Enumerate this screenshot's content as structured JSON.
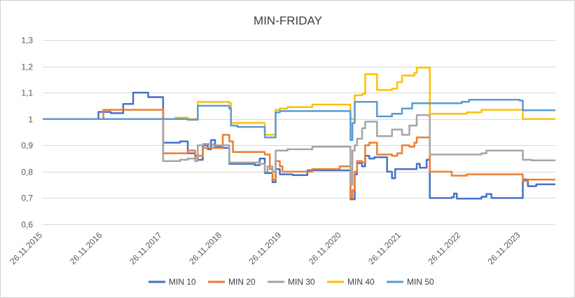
{
  "chart_data": {
    "type": "line",
    "title": "MIN-FRIDAY",
    "xlabel": "",
    "ylabel": "",
    "x_start": "2015-11-26",
    "x_end": "2024-06-26",
    "x_tick_labels": [
      "26.11.2015",
      "26.11.2016",
      "26.11.2017",
      "26.11.2018",
      "26.11.2019",
      "26.11.2020",
      "26.11.2021",
      "26.11.2022",
      "26.11.2023"
    ],
    "y_tick_labels": [
      "0,6",
      "0,7",
      "0,8",
      "0,9",
      "1",
      "1,1",
      "1,2",
      "1,3"
    ],
    "ylim": [
      0.6,
      1.3
    ],
    "y_step": 0.1,
    "grid": "horizontal",
    "legend_position": "bottom",
    "series": [
      {
        "name": "MIN 10",
        "color": "#4472C4",
        "points": [
          [
            "2015-11-26",
            1.0
          ],
          [
            "2016-10-01",
            1.0
          ],
          [
            "2016-11-01",
            1.027
          ],
          [
            "2017-01-15",
            1.022
          ],
          [
            "2017-04-01",
            1.057
          ],
          [
            "2017-06-01",
            1.1
          ],
          [
            "2017-09-01",
            1.083
          ],
          [
            "2017-12-01",
            0.91
          ],
          [
            "2018-03-15",
            0.915
          ],
          [
            "2018-05-01",
            0.87
          ],
          [
            "2018-06-15",
            0.86
          ],
          [
            "2018-07-01",
            0.845
          ],
          [
            "2018-08-01",
            0.9
          ],
          [
            "2018-09-01",
            0.885
          ],
          [
            "2018-09-20",
            0.92
          ],
          [
            "2018-10-15",
            0.895
          ],
          [
            "2018-12-01",
            0.89
          ],
          [
            "2019-01-10",
            0.83
          ],
          [
            "2019-06-15",
            0.825
          ],
          [
            "2019-07-15",
            0.85
          ],
          [
            "2019-08-15",
            0.795
          ],
          [
            "2019-10-01",
            0.76
          ],
          [
            "2019-10-20",
            0.81
          ],
          [
            "2019-11-15",
            0.79
          ],
          [
            "2020-02-01",
            0.787
          ],
          [
            "2020-05-01",
            0.805
          ],
          [
            "2020-11-15",
            0.805
          ],
          [
            "2021-01-20",
            0.695
          ],
          [
            "2021-02-15",
            0.79
          ],
          [
            "2021-03-01",
            0.832
          ],
          [
            "2021-04-01",
            0.82
          ],
          [
            "2021-04-20",
            0.86
          ],
          [
            "2021-05-15",
            0.85
          ],
          [
            "2021-06-15",
            0.855
          ],
          [
            "2021-09-01",
            0.8
          ],
          [
            "2021-10-01",
            0.775
          ],
          [
            "2021-10-20",
            0.81
          ],
          [
            "2022-02-01",
            0.81
          ],
          [
            "2022-03-01",
            0.83
          ],
          [
            "2022-03-20",
            0.815
          ],
          [
            "2022-05-01",
            0.845
          ],
          [
            "2022-05-20",
            0.7
          ],
          [
            "2022-10-01",
            0.703
          ],
          [
            "2022-10-15",
            0.717
          ],
          [
            "2022-11-01",
            0.698
          ],
          [
            "2023-04-01",
            0.705
          ],
          [
            "2023-05-01",
            0.715
          ],
          [
            "2023-06-01",
            0.7
          ],
          [
            "2023-11-20",
            0.7
          ],
          [
            "2023-12-10",
            0.77
          ],
          [
            "2024-01-10",
            0.745
          ],
          [
            "2024-03-01",
            0.752
          ],
          [
            "2024-06-26",
            0.752
          ]
        ]
      },
      {
        "name": "MIN 20",
        "color": "#ED7D31",
        "points": [
          [
            "2015-11-26",
            1.0
          ],
          [
            "2016-11-01",
            1.0
          ],
          [
            "2016-12-01",
            1.035
          ],
          [
            "2017-12-01",
            0.87
          ],
          [
            "2018-05-01",
            0.88
          ],
          [
            "2018-06-15",
            0.85
          ],
          [
            "2018-07-01",
            0.86
          ],
          [
            "2018-08-01",
            0.89
          ],
          [
            "2018-10-01",
            0.89
          ],
          [
            "2018-12-01",
            0.94
          ],
          [
            "2019-01-10",
            0.915
          ],
          [
            "2019-02-01",
            0.875
          ],
          [
            "2019-08-15",
            0.865
          ],
          [
            "2019-09-15",
            0.81
          ],
          [
            "2019-10-01",
            0.77
          ],
          [
            "2019-10-20",
            0.84
          ],
          [
            "2019-11-15",
            0.82
          ],
          [
            "2019-12-01",
            0.8
          ],
          [
            "2020-06-01",
            0.81
          ],
          [
            "2020-11-15",
            0.82
          ],
          [
            "2021-01-20",
            0.7
          ],
          [
            "2021-02-01",
            0.73
          ],
          [
            "2021-02-15",
            0.8
          ],
          [
            "2021-03-01",
            0.84
          ],
          [
            "2021-04-01",
            0.835
          ],
          [
            "2021-04-20",
            0.9
          ],
          [
            "2021-05-15",
            0.91
          ],
          [
            "2021-07-01",
            0.865
          ],
          [
            "2021-10-01",
            0.86
          ],
          [
            "2021-11-01",
            0.87
          ],
          [
            "2021-12-01",
            0.9
          ],
          [
            "2022-01-15",
            0.895
          ],
          [
            "2022-02-15",
            0.91
          ],
          [
            "2022-03-01",
            0.93
          ],
          [
            "2022-05-20",
            0.8
          ],
          [
            "2022-10-01",
            0.785
          ],
          [
            "2023-01-01",
            0.79
          ],
          [
            "2023-11-20",
            0.79
          ],
          [
            "2023-12-10",
            0.765
          ],
          [
            "2024-01-10",
            0.77
          ],
          [
            "2024-06-26",
            0.77
          ]
        ]
      },
      {
        "name": "MIN 30",
        "color": "#A5A5A5",
        "points": [
          [
            "2015-11-26",
            1.0
          ],
          [
            "2017-11-01",
            1.0
          ],
          [
            "2017-12-01",
            0.84
          ],
          [
            "2018-03-15",
            0.845
          ],
          [
            "2018-05-01",
            0.85
          ],
          [
            "2018-06-15",
            0.84
          ],
          [
            "2018-07-01",
            0.9
          ],
          [
            "2018-08-01",
            0.905
          ],
          [
            "2018-10-01",
            0.9
          ],
          [
            "2019-01-10",
            0.835
          ],
          [
            "2019-07-15",
            0.83
          ],
          [
            "2019-08-15",
            0.8
          ],
          [
            "2019-09-01",
            0.82
          ],
          [
            "2019-10-01",
            0.8
          ],
          [
            "2019-10-20",
            0.88
          ],
          [
            "2019-11-15",
            0.88
          ],
          [
            "2020-01-01",
            0.885
          ],
          [
            "2020-06-01",
            0.895
          ],
          [
            "2020-11-15",
            0.895
          ],
          [
            "2021-01-20",
            0.75
          ],
          [
            "2021-02-01",
            0.88
          ],
          [
            "2021-02-15",
            0.9
          ],
          [
            "2021-03-01",
            0.925
          ],
          [
            "2021-04-01",
            0.965
          ],
          [
            "2021-04-20",
            0.99
          ],
          [
            "2021-07-01",
            0.935
          ],
          [
            "2021-10-01",
            0.96
          ],
          [
            "2021-12-01",
            0.94
          ],
          [
            "2022-01-15",
            0.975
          ],
          [
            "2022-03-01",
            1.015
          ],
          [
            "2022-05-20",
            0.865
          ],
          [
            "2023-01-01",
            0.865
          ],
          [
            "2023-04-01",
            0.87
          ],
          [
            "2023-05-01",
            0.88
          ],
          [
            "2023-11-20",
            0.88
          ],
          [
            "2023-12-10",
            0.845
          ],
          [
            "2024-02-01",
            0.843
          ],
          [
            "2024-06-26",
            0.843
          ]
        ]
      },
      {
        "name": "MIN 40",
        "color": "#FFC000",
        "points": [
          [
            "2015-11-26",
            1.0
          ],
          [
            "2018-01-15",
            1.0
          ],
          [
            "2018-02-15",
            1.005
          ],
          [
            "2018-05-01",
            1.0
          ],
          [
            "2018-07-01",
            1.065
          ],
          [
            "2019-01-10",
            1.06
          ],
          [
            "2019-01-20",
            0.985
          ],
          [
            "2019-06-15",
            0.985
          ],
          [
            "2019-08-15",
            0.94
          ],
          [
            "2019-10-20",
            1.035
          ],
          [
            "2019-11-15",
            1.04
          ],
          [
            "2020-01-01",
            1.045
          ],
          [
            "2020-06-01",
            1.055
          ],
          [
            "2020-11-15",
            1.055
          ],
          [
            "2021-01-20",
            1.0
          ],
          [
            "2021-02-15",
            1.09
          ],
          [
            "2021-04-01",
            1.095
          ],
          [
            "2021-04-20",
            1.17
          ],
          [
            "2021-07-01",
            1.11
          ],
          [
            "2021-10-01",
            1.115
          ],
          [
            "2021-11-01",
            1.14
          ],
          [
            "2021-12-01",
            1.165
          ],
          [
            "2022-02-15",
            1.175
          ],
          [
            "2022-03-01",
            1.195
          ],
          [
            "2022-05-20",
            1.02
          ],
          [
            "2023-01-01",
            1.025
          ],
          [
            "2023-04-01",
            1.035
          ],
          [
            "2023-11-20",
            1.035
          ],
          [
            "2023-12-10",
            1.0
          ],
          [
            "2024-06-26",
            1.0
          ]
        ]
      },
      {
        "name": "MIN 50",
        "color": "#5B9BD5",
        "points": [
          [
            "2015-11-26",
            1.0
          ],
          [
            "2018-01-15",
            1.0
          ],
          [
            "2018-05-01",
            0.997
          ],
          [
            "2018-07-01",
            1.05
          ],
          [
            "2019-01-10",
            1.04
          ],
          [
            "2019-01-20",
            0.975
          ],
          [
            "2019-03-01",
            0.97
          ],
          [
            "2019-08-15",
            0.93
          ],
          [
            "2019-10-20",
            1.025
          ],
          [
            "2019-11-15",
            1.03
          ],
          [
            "2020-06-01",
            1.03
          ],
          [
            "2020-11-15",
            1.03
          ],
          [
            "2021-01-20",
            0.92
          ],
          [
            "2021-02-01",
            0.985
          ],
          [
            "2021-02-15",
            1.065
          ],
          [
            "2021-07-01",
            1.01
          ],
          [
            "2021-10-01",
            1.02
          ],
          [
            "2021-12-01",
            1.04
          ],
          [
            "2022-02-01",
            1.06
          ],
          [
            "2022-05-20",
            1.06
          ],
          [
            "2022-12-01",
            1.065
          ],
          [
            "2023-01-15",
            1.073
          ],
          [
            "2023-11-20",
            1.07
          ],
          [
            "2023-12-10",
            1.033
          ],
          [
            "2024-06-26",
            1.033
          ]
        ]
      }
    ]
  }
}
